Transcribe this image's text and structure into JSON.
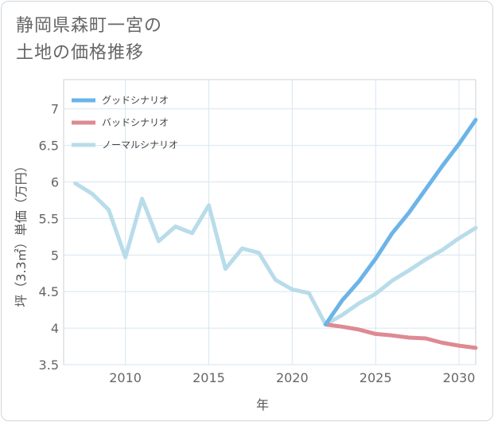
{
  "title_lines": [
    "静岡県森町一宮の",
    "土地の価格推移"
  ],
  "chart_data": {
    "type": "line",
    "xlabel": "年",
    "ylabel": "坪（3.3㎡）単価（万円）",
    "xlim": [
      2006.3,
      2031.0
    ],
    "ylim": [
      3.5,
      7.4
    ],
    "x_ticks": [
      2010,
      2015,
      2020,
      2025,
      2030
    ],
    "y_ticks": [
      3.5,
      4,
      4.5,
      5,
      5.5,
      6,
      6.5,
      7
    ],
    "grid": true,
    "legend_position": "top-left",
    "series": [
      {
        "name": "グッドシナリオ",
        "color": "#6cb4e8",
        "x": [
          2022,
          2023,
          2024,
          2025,
          2026,
          2027,
          2028,
          2029,
          2030,
          2031
        ],
        "values": [
          4.05,
          4.38,
          4.64,
          4.95,
          5.3,
          5.58,
          5.9,
          6.22,
          6.52,
          6.85
        ]
      },
      {
        "name": "バッドシナリオ",
        "color": "#de8a93",
        "x": [
          2022,
          2023,
          2024,
          2025,
          2026,
          2027,
          2028,
          2029,
          2030,
          2031
        ],
        "values": [
          4.05,
          4.02,
          3.98,
          3.92,
          3.9,
          3.87,
          3.86,
          3.8,
          3.76,
          3.73
        ]
      },
      {
        "name": "ノーマルシナリオ",
        "color": "#b8dcea",
        "x": [
          2007,
          2008,
          2009,
          2010,
          2011,
          2012,
          2013,
          2014,
          2015,
          2016,
          2017,
          2018,
          2019,
          2020,
          2021,
          2022,
          2023,
          2024,
          2025,
          2026,
          2027,
          2028,
          2029,
          2030,
          2031
        ],
        "values": [
          5.98,
          5.84,
          5.62,
          4.97,
          5.77,
          5.19,
          5.39,
          5.3,
          5.68,
          4.81,
          5.09,
          5.03,
          4.66,
          4.53,
          4.48,
          4.05,
          4.18,
          4.34,
          4.47,
          4.65,
          4.79,
          4.94,
          5.07,
          5.23,
          5.37
        ]
      }
    ]
  }
}
